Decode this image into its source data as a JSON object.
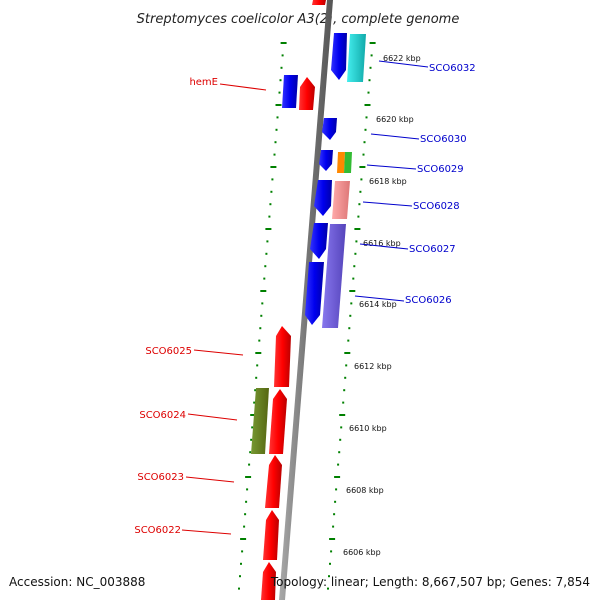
{
  "title": "Streptomyces coelicolor A3(2), complete genome",
  "footer": {
    "accession": "Accession: NC_003888",
    "summary": "Topology: linear; Length: 8,667,507 bp; Genes: 7,854"
  },
  "scale_labels": [
    "6622 kbp",
    "6620 kbp",
    "6618 kbp",
    "6616 kbp",
    "6614 kbp",
    "6612 kbp",
    "6610 kbp",
    "6608 kbp",
    "6606 kbp"
  ],
  "genes": [
    {
      "label": "SCO6032",
      "strand": "minus",
      "color": "#0000cc"
    },
    {
      "label": "hemE",
      "strand": "plus",
      "color": "#dd0000"
    },
    {
      "label": "SCO6030",
      "strand": "minus",
      "color": "#0000cc"
    },
    {
      "label": "SCO6029",
      "strand": "minus",
      "color": "#0000cc"
    },
    {
      "label": "SCO6028",
      "strand": "minus",
      "color": "#0000cc"
    },
    {
      "label": "SCO6027",
      "strand": "minus",
      "color": "#0000cc"
    },
    {
      "label": "SCO6026",
      "strand": "minus",
      "color": "#0000cc"
    },
    {
      "label": "SCO6025",
      "strand": "plus",
      "color": "#dd0000"
    },
    {
      "label": "SCO6024",
      "strand": "plus",
      "color": "#dd0000"
    },
    {
      "label": "SCO6023",
      "strand": "plus",
      "color": "#dd0000"
    },
    {
      "label": "SCO6022",
      "strand": "plus",
      "color": "#dd0000"
    }
  ],
  "colors": {
    "forward_cds": "#ff0000",
    "reverse_cds": "#0000ee",
    "backbone": "#888888",
    "tick": "#008000",
    "cyan_feature": "#22cccc",
    "orange_feature": "#ff8800",
    "green_feature": "#33bb33",
    "pink_feature": "#ee8888",
    "purple_feature": "#7766dd",
    "olive_feature": "#668822"
  }
}
